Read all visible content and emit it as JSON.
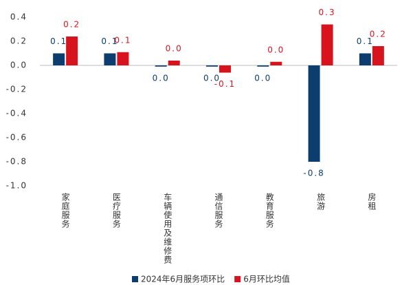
{
  "chart_data": {
    "type": "bar",
    "categories": [
      "家庭服务",
      "医疗服务",
      "车辆使用及维修费",
      "通信服务",
      "教育服务",
      "旅游",
      "房租"
    ],
    "series": [
      {
        "name": "2024年6月服务项环比",
        "color": "#0b3d6e",
        "values": [
          0.1,
          0.1,
          -0.01,
          -0.01,
          -0.01,
          -0.8,
          0.1
        ],
        "value_labels": [
          "0.1",
          "0.1",
          "0.0",
          "0.0",
          "0.0",
          "-0.8",
          "0.1"
        ]
      },
      {
        "name": "6月环比均值",
        "color": "#d7141e",
        "values": [
          0.24,
          0.11,
          0.04,
          -0.06,
          0.03,
          0.34,
          0.16
        ],
        "value_labels": [
          "0.2",
          "0.1",
          "0.0",
          "-0.1",
          "0.0",
          "0.3",
          "0.2"
        ]
      }
    ],
    "ylim": [
      -1.0,
      0.44
    ],
    "yticks": [
      0.4,
      0.2,
      {
        "value": 0,
        "label": "0.0"
      },
      -0.2,
      -0.4,
      -0.6,
      -0.8,
      {
        "value": -1,
        "label": "-1.0"
      }
    ],
    "grid": false,
    "legend": "bottom"
  }
}
